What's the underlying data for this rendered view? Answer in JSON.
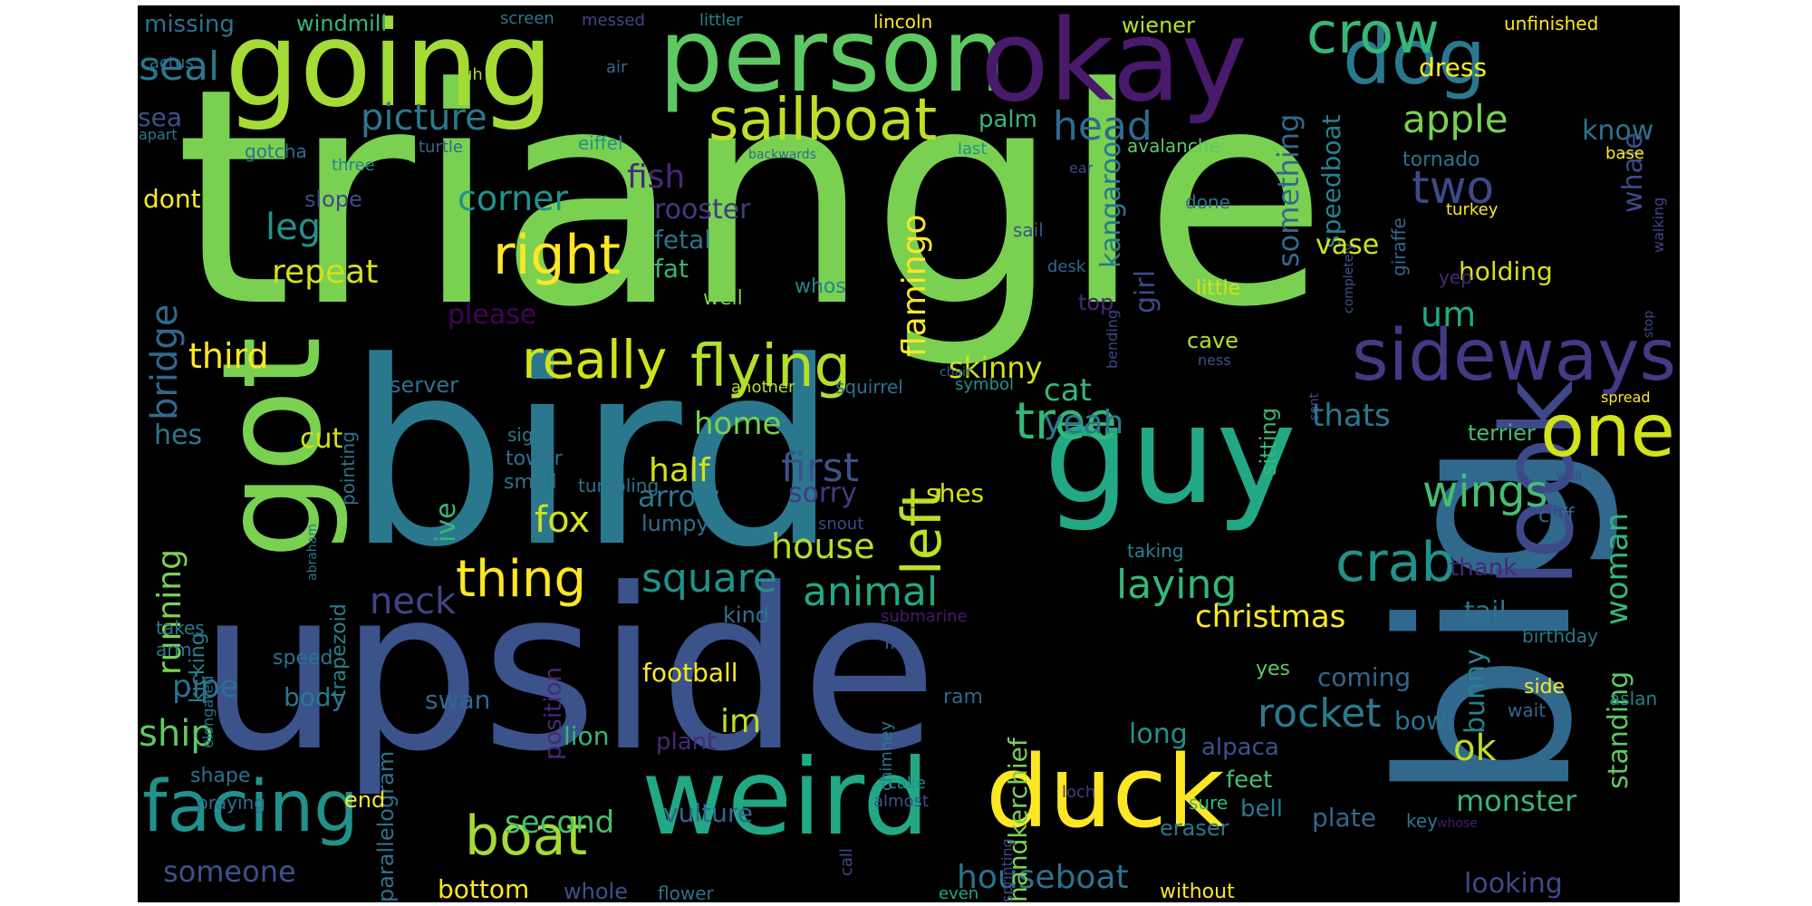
{
  "canvas": {
    "background": "#000000",
    "colormap": "viridis"
  },
  "words": [
    {
      "text": "triangle",
      "color": "#7ad151"
    },
    {
      "text": "bird",
      "color": "#2a788e"
    },
    {
      "text": "upside",
      "color": "#3b528b"
    },
    {
      "text": "big",
      "color": "#31688e"
    },
    {
      "text": "going",
      "color": "#a5db36"
    },
    {
      "text": "person",
      "color": "#5ec962"
    },
    {
      "text": "okay",
      "color": "#481a6c"
    },
    {
      "text": "guy",
      "color": "#22a884"
    },
    {
      "text": "got",
      "color": "#7ad151"
    },
    {
      "text": "look",
      "color": "#3e4989"
    },
    {
      "text": "weird",
      "color": "#22a884"
    },
    {
      "text": "duck",
      "color": "#fde725"
    },
    {
      "text": "dog",
      "color": "#2a788e"
    },
    {
      "text": "sideways",
      "color": "#443983"
    },
    {
      "text": "crow",
      "color": "#35b779"
    },
    {
      "text": "sailboat",
      "color": "#bddf26"
    },
    {
      "text": "facing",
      "color": "#21918c"
    },
    {
      "text": "flying",
      "color": "#b5de2b"
    },
    {
      "text": "really",
      "color": "#d2e21b"
    },
    {
      "text": "one",
      "color": "#d2e21b"
    },
    {
      "text": "right",
      "color": "#fde725"
    },
    {
      "text": "tree",
      "color": "#35b779"
    },
    {
      "text": "boat",
      "color": "#a5db36"
    },
    {
      "text": "crab",
      "color": "#21918c"
    },
    {
      "text": "thing",
      "color": "#fde725"
    },
    {
      "text": "left",
      "color": "#bddf26"
    },
    {
      "text": "bridge",
      "color": "#31688e"
    },
    {
      "text": "running",
      "color": "#7ad151"
    },
    {
      "text": "wings",
      "color": "#44bf70"
    },
    {
      "text": "picture",
      "color": "#2a788e"
    },
    {
      "text": "head",
      "color": "#31688e"
    },
    {
      "text": "seal",
      "color": "#2a788e"
    },
    {
      "text": "apple",
      "color": "#7ad151"
    },
    {
      "text": "two",
      "color": "#3e4989"
    },
    {
      "text": "something",
      "color": "#31688e"
    },
    {
      "text": "woman",
      "color": "#35b779"
    },
    {
      "text": "rocket",
      "color": "#2a788e"
    },
    {
      "text": "square",
      "color": "#21918c"
    },
    {
      "text": "animal",
      "color": "#22a884"
    },
    {
      "text": "laying",
      "color": "#35b779"
    },
    {
      "text": "house",
      "color": "#b5de2b"
    },
    {
      "text": "first",
      "color": "#3b528b"
    },
    {
      "text": "neck",
      "color": "#414487"
    },
    {
      "text": "christmas",
      "color": "#fde725"
    },
    {
      "text": "houseboat",
      "color": "#2c728e"
    },
    {
      "text": "corner",
      "color": "#21918c"
    },
    {
      "text": "fish",
      "color": "#482878"
    },
    {
      "text": "flamingo",
      "color": "#fde725"
    },
    {
      "text": "kangaroo",
      "color": "#2a788e"
    },
    {
      "text": "speedboat",
      "color": "#26828e"
    },
    {
      "text": "leg",
      "color": "#21918c"
    },
    {
      "text": "third",
      "color": "#fde725"
    },
    {
      "text": "skinny",
      "color": "#d2e21b"
    },
    {
      "text": "cat",
      "color": "#35b779"
    },
    {
      "text": "yeah",
      "color": "#2a788e"
    },
    {
      "text": "fox",
      "color": "#d2e21b"
    },
    {
      "text": "half",
      "color": "#d2e21b"
    },
    {
      "text": "home",
      "color": "#7ad151"
    },
    {
      "text": "arrow",
      "color": "#2a788e"
    },
    {
      "text": "im",
      "color": "#bddf26"
    },
    {
      "text": "ship",
      "color": "#5ec962"
    },
    {
      "text": "um",
      "color": "#22a884"
    },
    {
      "text": "ok",
      "color": "#bddf26"
    },
    {
      "text": "monster",
      "color": "#35b779"
    },
    {
      "text": "bunny",
      "color": "#26828e"
    },
    {
      "text": "second",
      "color": "#44bf70"
    },
    {
      "text": "vulture",
      "color": "#31688e"
    },
    {
      "text": "someone",
      "color": "#3b528b"
    },
    {
      "text": "bottom",
      "color": "#fde725"
    },
    {
      "text": "looking",
      "color": "#3e4989"
    },
    {
      "text": "standing",
      "color": "#5ec962"
    },
    {
      "text": "holding",
      "color": "#d2e21b"
    },
    {
      "text": "know",
      "color": "#2c728e"
    },
    {
      "text": "whale",
      "color": "#3e4989"
    },
    {
      "text": "dress",
      "color": "#fde725"
    },
    {
      "text": "missing",
      "color": "#2c728e"
    },
    {
      "text": "windmill",
      "color": "#35b779"
    },
    {
      "text": "screen",
      "color": "#2a788e"
    },
    {
      "text": "messed",
      "color": "#414487"
    },
    {
      "text": "littler",
      "color": "#26828e"
    },
    {
      "text": "lincoln",
      "color": "#fde725"
    },
    {
      "text": "wiener",
      "color": "#b5de2b"
    },
    {
      "text": "unfinished",
      "color": "#fde725"
    },
    {
      "text": "cactus",
      "color": "#2c728e"
    },
    {
      "text": "air",
      "color": "#31688e"
    },
    {
      "text": "uh",
      "color": "#a5db36"
    },
    {
      "text": "sea",
      "color": "#3b528b"
    },
    {
      "text": "apart",
      "color": "#2a788e"
    },
    {
      "text": "gotcha",
      "color": "#2c728e"
    },
    {
      "text": "turtle",
      "color": "#31688e"
    },
    {
      "text": "eiffel",
      "color": "#21918c"
    },
    {
      "text": "backwards",
      "color": "#31688e"
    },
    {
      "text": "last",
      "color": "#21918c"
    },
    {
      "text": "ear",
      "color": "#3e4989"
    },
    {
      "text": "avalanche",
      "color": "#5ec962"
    },
    {
      "text": "three",
      "color": "#26828e"
    },
    {
      "text": "palm",
      "color": "#35b779"
    },
    {
      "text": "tornado",
      "color": "#2c728e"
    },
    {
      "text": "base",
      "color": "#fde725"
    },
    {
      "text": "dont",
      "color": "#fde725"
    },
    {
      "text": "rooster",
      "color": "#443983"
    },
    {
      "text": "fetal",
      "color": "#2c728e"
    },
    {
      "text": "slope",
      "color": "#3e4989"
    },
    {
      "text": "fat",
      "color": "#35b779"
    },
    {
      "text": "repeat",
      "color": "#d2e21b"
    },
    {
      "text": "please",
      "color": "#440154"
    },
    {
      "text": "girl",
      "color": "#3e4989"
    },
    {
      "text": "top",
      "color": "#482878"
    },
    {
      "text": "sail",
      "color": "#3b528b"
    },
    {
      "text": "desk",
      "color": "#31688e"
    },
    {
      "text": "whos",
      "color": "#26828e"
    },
    {
      "text": "well",
      "color": "#7ad151"
    },
    {
      "text": "bending",
      "color": "#3e4989"
    },
    {
      "text": "done",
      "color": "#2c728e"
    },
    {
      "text": "little",
      "color": "#d2e21b"
    },
    {
      "text": "turkey",
      "color": "#fde725"
    },
    {
      "text": "giraffe",
      "color": "#31688e"
    },
    {
      "text": "completely",
      "color": "#3b528b"
    },
    {
      "text": "walking",
      "color": "#414487"
    },
    {
      "text": "yep",
      "color": "#482878"
    },
    {
      "text": "vase",
      "color": "#d2e21b"
    },
    {
      "text": "cave",
      "color": "#b5de2b"
    },
    {
      "text": "ness",
      "color": "#3b528b"
    },
    {
      "text": "sitting",
      "color": "#35b779"
    },
    {
      "text": "sent",
      "color": "#3e4989"
    },
    {
      "text": "stop",
      "color": "#3e4989"
    },
    {
      "text": "spread",
      "color": "#fde725"
    },
    {
      "text": "terrier",
      "color": "#44bf70"
    },
    {
      "text": "thats",
      "color": "#2a788e"
    },
    {
      "text": "symbol",
      "color": "#21918c"
    },
    {
      "text": "chair",
      "color": "#31688e"
    },
    {
      "text": "squirrel",
      "color": "#2c728e"
    },
    {
      "text": "another",
      "color": "#b5de2b"
    },
    {
      "text": "server",
      "color": "#2c728e"
    },
    {
      "text": "pointing",
      "color": "#2c728e"
    },
    {
      "text": "hes",
      "color": "#2a788e"
    },
    {
      "text": "cut",
      "color": "#d2e21b"
    },
    {
      "text": "sign",
      "color": "#2a788e"
    },
    {
      "text": "tower",
      "color": "#2c728e"
    },
    {
      "text": "small",
      "color": "#2c728e"
    },
    {
      "text": "tumbling",
      "color": "#2c728e"
    },
    {
      "text": "ive",
      "color": "#35b779"
    },
    {
      "text": "lumpy",
      "color": "#2c728e"
    },
    {
      "text": "sorry",
      "color": "#443983"
    },
    {
      "text": "shes",
      "color": "#d2e21b"
    },
    {
      "text": "abraham",
      "color": "#2c728e"
    },
    {
      "text": "trapezoid",
      "color": "#26828e"
    },
    {
      "text": "wall",
      "color": "#3e4989"
    },
    {
      "text": "cliff",
      "color": "#31688e"
    },
    {
      "text": "taking",
      "color": "#26828e"
    },
    {
      "text": "thank",
      "color": "#482878"
    },
    {
      "text": "snout",
      "color": "#3e4989"
    },
    {
      "text": "kicking",
      "color": "#26828e"
    },
    {
      "text": "kind",
      "color": "#2c728e"
    },
    {
      "text": "elongated",
      "color": "#2c728e"
    },
    {
      "text": "position",
      "color": "#482878"
    },
    {
      "text": "handkerchief",
      "color": "#7ad151"
    },
    {
      "text": "tail",
      "color": "#2c728e"
    },
    {
      "text": "birthday",
      "color": "#2a788e"
    },
    {
      "text": "takes",
      "color": "#2a788e"
    },
    {
      "text": "arm",
      "color": "#2a788e"
    },
    {
      "text": "submarine",
      "color": "#481a6c"
    },
    {
      "text": "ill",
      "color": "#3b528b"
    },
    {
      "text": "yes",
      "color": "#5ec962"
    },
    {
      "text": "coming",
      "color": "#31688e"
    },
    {
      "text": "speed",
      "color": "#2c728e"
    },
    {
      "text": "body",
      "color": "#2a788e"
    },
    {
      "text": "swan",
      "color": "#31688e"
    },
    {
      "text": "football",
      "color": "#fde725"
    },
    {
      "text": "pipe",
      "color": "#2c728e"
    },
    {
      "text": "chimney",
      "color": "#2a788e"
    },
    {
      "text": "ram",
      "color": "#31688e"
    },
    {
      "text": "long",
      "color": "#21918c"
    },
    {
      "text": "bowl",
      "color": "#2c728e"
    },
    {
      "text": "side",
      "color": "#fde725"
    },
    {
      "text": "wait",
      "color": "#31688e"
    },
    {
      "text": "aslan",
      "color": "#26828e"
    },
    {
      "text": "lion",
      "color": "#35b779"
    },
    {
      "text": "plant",
      "color": "#482878"
    },
    {
      "text": "alpaca",
      "color": "#3b528b"
    },
    {
      "text": "parallelogram",
      "color": "#2c728e"
    },
    {
      "text": "shape",
      "color": "#2c728e"
    },
    {
      "text": "praying",
      "color": "#2c728e"
    },
    {
      "text": "end",
      "color": "#fde725"
    },
    {
      "text": "cake",
      "color": "#21918c"
    },
    {
      "text": "almost",
      "color": "#3b528b"
    },
    {
      "text": "call",
      "color": "#3e4989"
    },
    {
      "text": "feet",
      "color": "#44bf70"
    },
    {
      "text": "sure",
      "color": "#35b779"
    },
    {
      "text": "loch",
      "color": "#443983"
    },
    {
      "text": "bell",
      "color": "#2a788e"
    },
    {
      "text": "eraser",
      "color": "#2a788e"
    },
    {
      "text": "plate",
      "color": "#31688e"
    },
    {
      "text": "key",
      "color": "#2a788e"
    },
    {
      "text": "whose",
      "color": "#481a6c"
    },
    {
      "text": "whole",
      "color": "#3b528b"
    },
    {
      "text": "flower",
      "color": "#2c728e"
    },
    {
      "text": "even",
      "color": "#22a884"
    },
    {
      "text": "sprinting",
      "color": "#3e4989"
    },
    {
      "text": "without",
      "color": "#fde725"
    }
  ]
}
